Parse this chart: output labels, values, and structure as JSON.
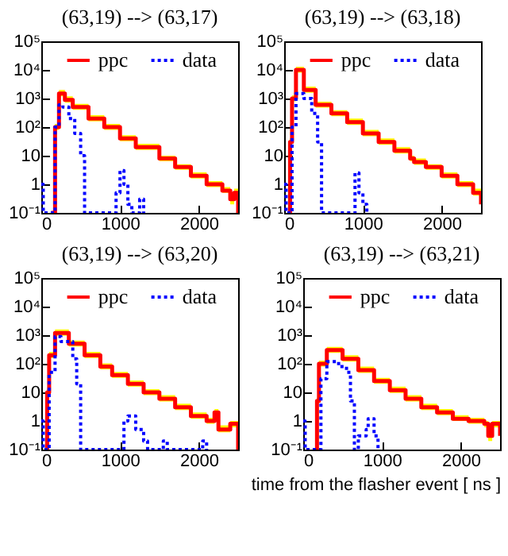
{
  "chart_data": [
    {
      "type": "step",
      "title": "(63,19) --> (63,17)",
      "legend": "top",
      "xlim": [
        0,
        2500
      ],
      "xticks": [
        0,
        1000,
        2000
      ],
      "ylim": [
        0.1,
        100000
      ],
      "log": "y",
      "yticks": [
        {
          "value": 0.1,
          "label": "10⁻¹"
        },
        {
          "value": 1,
          "label": "1"
        },
        {
          "value": 10,
          "label": "10"
        },
        {
          "value": 100,
          "label": "10²"
        },
        {
          "value": 1000,
          "label": "10³"
        },
        {
          "value": 10000,
          "label": "10⁴"
        },
        {
          "value": 100000,
          "label": "10⁵"
        }
      ],
      "series": [
        {
          "name": "ppc",
          "color": "#ff0000",
          "line_style": "solid",
          "x": [
            125,
            150,
            175,
            225,
            300,
            400,
            600,
            800,
            1000,
            1200,
            1500,
            1700,
            1900,
            2100,
            2300,
            2400,
            2450,
            2500
          ],
          "values": [
            0.1,
            0.1,
            100,
            1500,
            900,
            500,
            200,
            100,
            40,
            20,
            8,
            4,
            2,
            1,
            0.6,
            0.3,
            0.5,
            0.1
          ],
          "lower": [
            0.1,
            0.1,
            80,
            1200,
            720,
            400,
            160,
            80,
            32,
            16,
            6.4,
            3.2,
            1.6,
            0.8,
            0.5,
            0.2,
            0.4,
            0.1
          ],
          "upper": [
            0.1,
            0.1,
            130,
            2000,
            1200,
            650,
            260,
            130,
            52,
            26,
            10,
            5,
            2.6,
            1.3,
            0.8,
            0.4,
            0.7,
            0.1
          ]
        },
        {
          "name": "data",
          "color": "#0000ff",
          "line_style": "dotted",
          "x": [
            0,
            25,
            125,
            175,
            225,
            275,
            350,
            425,
            500,
            550,
            900,
            950,
            1000,
            1050,
            1100,
            1150,
            1250,
            1300
          ],
          "values": [
            1,
            0.1,
            0.1,
            100,
            600,
            500,
            200,
            60,
            10,
            0.1,
            0.1,
            0.5,
            3,
            1,
            0.2,
            0.1,
            0.3,
            0.1
          ]
        }
      ]
    },
    {
      "type": "step",
      "title": "(63,19) --> (63,18)",
      "legend": "top",
      "xlim": [
        0,
        2500
      ],
      "xticks": [
        0,
        1000,
        2000
      ],
      "ylim": [
        0.1,
        100000
      ],
      "log": "y",
      "yticks": [
        {
          "value": 0.1,
          "label": "10⁻¹"
        },
        {
          "value": 1,
          "label": "1"
        },
        {
          "value": 10,
          "label": "10"
        },
        {
          "value": 100,
          "label": "10²"
        },
        {
          "value": 1000,
          "label": "10³"
        },
        {
          "value": 10000,
          "label": "10⁴"
        },
        {
          "value": 100000,
          "label": "10⁵"
        }
      ],
      "series": [
        {
          "name": "ppc",
          "color": "#ff0000",
          "line_style": "solid",
          "x": [
            50,
            75,
            100,
            150,
            250,
            400,
            600,
            800,
            1000,
            1200,
            1400,
            1600,
            1650,
            1800,
            2000,
            2200,
            2400,
            2500
          ],
          "values": [
            0.1,
            30,
            1000,
            10000,
            2000,
            600,
            300,
            150,
            60,
            30,
            15,
            8,
            6,
            4,
            2,
            1,
            0.5,
            0.2
          ],
          "lower": [
            0.1,
            24,
            800,
            8000,
            1600,
            480,
            240,
            120,
            48,
            24,
            12,
            6.4,
            4.8,
            3.2,
            1.6,
            0.8,
            0.4,
            0.1
          ],
          "upper": [
            0.1,
            40,
            1300,
            13000,
            2600,
            780,
            390,
            200,
            80,
            40,
            20,
            10,
            8,
            5,
            2.6,
            1.3,
            0.7,
            0.3
          ]
        },
        {
          "name": "data",
          "color": "#0000ff",
          "line_style": "dotted",
          "x": [
            0,
            25,
            75,
            100,
            150,
            250,
            350,
            425,
            475,
            875,
            900,
            950,
            1000,
            1050
          ],
          "values": [
            1,
            0.1,
            0.1,
            100,
            1500,
            1000,
            300,
            30,
            0.1,
            0.1,
            2.5,
            0.5,
            0.2,
            0.1
          ]
        }
      ]
    },
    {
      "type": "step",
      "title": "(63,19) --> (63,20)",
      "legend": "top",
      "xlim": [
        0,
        2500
      ],
      "xticks": [
        0,
        1000,
        2000
      ],
      "ylim": [
        0.1,
        100000
      ],
      "log": "y",
      "yticks": [
        {
          "value": 0.1,
          "label": "10⁻¹"
        },
        {
          "value": 1,
          "label": "1"
        },
        {
          "value": 10,
          "label": "10"
        },
        {
          "value": 100,
          "label": "10²"
        },
        {
          "value": 1000,
          "label": "10³"
        },
        {
          "value": 10000,
          "label": "10⁴"
        },
        {
          "value": 100000,
          "label": "10⁵"
        }
      ],
      "series": [
        {
          "name": "ppc",
          "color": "#ff0000",
          "line_style": "solid",
          "x": [
            50,
            75,
            100,
            175,
            350,
            550,
            750,
            900,
            1100,
            1300,
            1500,
            1700,
            1900,
            2100,
            2200,
            2250,
            2400,
            2500
          ],
          "values": [
            0.1,
            10,
            200,
            1200,
            500,
            200,
            80,
            40,
            20,
            10,
            6,
            3,
            1.5,
            1,
            2,
            0.5,
            0.8,
            0.1
          ],
          "lower": [
            0.1,
            8,
            160,
            960,
            400,
            160,
            64,
            32,
            16,
            8,
            4.8,
            2.4,
            1.2,
            0.8,
            1.6,
            0.4,
            0.6,
            0.1
          ],
          "upper": [
            0.1,
            13,
            260,
            1600,
            650,
            260,
            104,
            52,
            26,
            13,
            8,
            4,
            2,
            1.3,
            2.6,
            0.7,
            1,
            0.2
          ]
        },
        {
          "name": "data",
          "color": "#0000ff",
          "line_style": "dotted",
          "x": [
            0,
            25,
            75,
            100,
            175,
            250,
            400,
            450,
            500,
            950,
            1050,
            1100,
            1200,
            1300,
            1350,
            1550,
            1600,
            2000,
            2050,
            2100
          ],
          "values": [
            1,
            0.1,
            0.1,
            50,
            900,
            600,
            150,
            20,
            0.1,
            0.1,
            1,
            1.5,
            0.5,
            0.2,
            0.1,
            0.2,
            0.1,
            0.1,
            0.2,
            0.1
          ]
        }
      ]
    },
    {
      "type": "step",
      "title": "(63,19) --> (63,21)",
      "legend": "top",
      "xlabel": "time from the flasher event [ ns ]",
      "xlim": [
        0,
        2500
      ],
      "xticks": [
        0,
        1000,
        2000
      ],
      "ylim": [
        0.1,
        100000
      ],
      "log": "y",
      "yticks": [
        {
          "value": 0.1,
          "label": "10⁻¹"
        },
        {
          "value": 1,
          "label": "1"
        },
        {
          "value": 10,
          "label": "10"
        },
        {
          "value": 100,
          "label": "10²"
        },
        {
          "value": 1000,
          "label": "10³"
        },
        {
          "value": 10000,
          "label": "10⁴"
        },
        {
          "value": 100000,
          "label": "10⁵"
        }
      ],
      "series": [
        {
          "name": "ppc",
          "color": "#ff0000",
          "line_style": "solid",
          "x": [
            150,
            175,
            200,
            300,
            500,
            700,
            900,
            1100,
            1300,
            1500,
            1700,
            1900,
            2100,
            2300,
            2350,
            2400,
            2500
          ],
          "values": [
            0.1,
            5,
            100,
            300,
            150,
            60,
            25,
            12,
            6,
            3,
            2,
            1.2,
            1,
            0.8,
            0.3,
            0.8,
            0.3
          ],
          "lower": [
            0.1,
            4,
            80,
            240,
            120,
            48,
            20,
            9.6,
            4.8,
            2.4,
            1.6,
            1,
            0.8,
            0.6,
            0.2,
            0.6,
            0.2
          ],
          "upper": [
            0.1,
            6.5,
            130,
            390,
            200,
            80,
            32,
            16,
            8,
            4,
            2.6,
            1.6,
            1.3,
            1,
            0.4,
            1,
            0.4
          ]
        },
        {
          "name": "data",
          "color": "#0000ff",
          "line_style": "dotted",
          "x": [
            0,
            25,
            175,
            225,
            300,
            450,
            550,
            600,
            650,
            700,
            800,
            825,
            900,
            950
          ],
          "values": [
            1,
            0.1,
            0.1,
            30,
            120,
            80,
            50,
            5,
            0.1,
            0.3,
            0.5,
            1.2,
            0.3,
            0.1
          ]
        }
      ]
    }
  ]
}
